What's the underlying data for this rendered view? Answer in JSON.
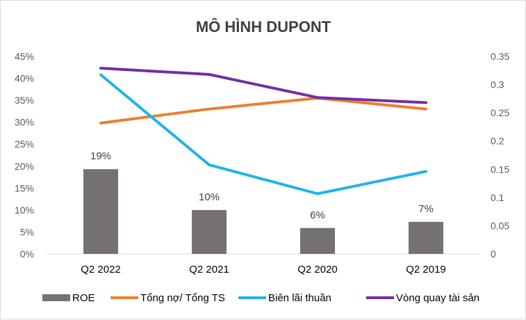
{
  "chart_data": {
    "type": "bar",
    "title": "MÔ HÌNH DUPONT",
    "categories": [
      "Q2 2022",
      "Q2 2021",
      "Q2 2020",
      "Q2 2019"
    ],
    "left_axis": {
      "ylim": [
        0,
        0.45
      ],
      "ticks": [
        0,
        0.05,
        0.1,
        0.15,
        0.2,
        0.25,
        0.3,
        0.35,
        0.4,
        0.45
      ],
      "tick_labels": [
        "0%",
        "5%",
        "10%",
        "15%",
        "20%",
        "25%",
        "30%",
        "35%",
        "40%",
        "45%"
      ]
    },
    "right_axis": {
      "ylim": [
        0,
        0.35
      ],
      "ticks": [
        0,
        0.05,
        0.1,
        0.15,
        0.2,
        0.25,
        0.3,
        0.35
      ],
      "tick_labels": [
        "0",
        "0.05",
        "0.1",
        "0.15",
        "0.2",
        "0.25",
        "0.3",
        "0.35"
      ]
    },
    "series": [
      {
        "name": "ROE",
        "kind": "bar",
        "axis": "left",
        "color": "#767171",
        "values": [
          0.193,
          0.1,
          0.059,
          0.073
        ],
        "labels": [
          "19%",
          "10%",
          "6%",
          "7%"
        ]
      },
      {
        "name": "Tổng nợ/ Tổng TS",
        "kind": "line",
        "axis": "left",
        "color": "#ED7D31",
        "values": [
          0.298,
          0.33,
          0.355,
          0.33
        ]
      },
      {
        "name": "Biên lãi thuần",
        "kind": "line",
        "axis": "left",
        "color": "#1FB4EA",
        "values": [
          0.408,
          0.203,
          0.137,
          0.188
        ]
      },
      {
        "name": "Vòng quay tài sản",
        "kind": "line",
        "axis": "right",
        "color": "#7030A0",
        "values": [
          0.329,
          0.318,
          0.277,
          0.268
        ]
      }
    ],
    "legend_position": "bottom",
    "grid": false
  }
}
